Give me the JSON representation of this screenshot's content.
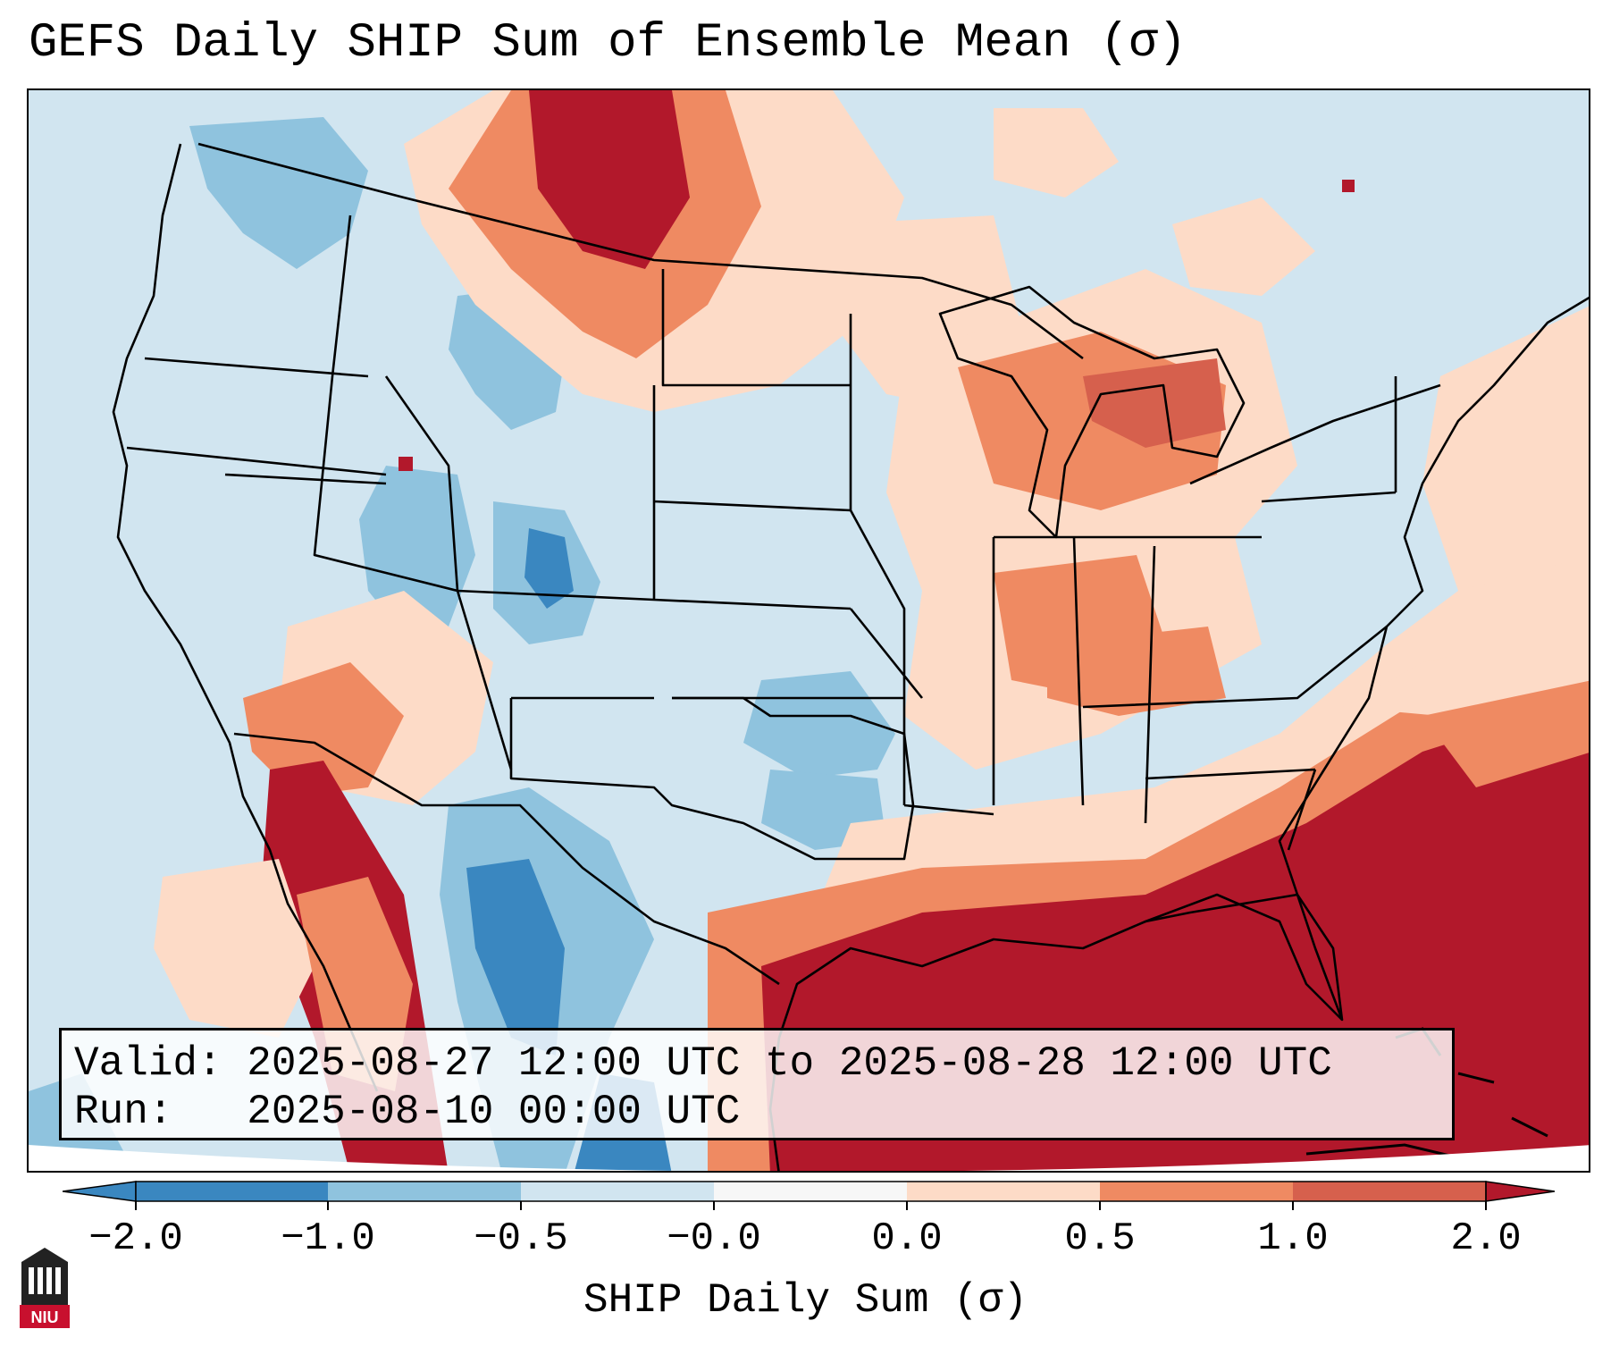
{
  "title": "GEFS Daily SHIP Sum of Ensemble Mean (σ)",
  "info": {
    "valid_label": "Valid:",
    "valid_value": "2025-08-27 12:00 UTC to 2025-08-28 12:00 UTC",
    "run_label": "Run:",
    "run_value": "2025-08-10 00:00 UTC"
  },
  "colorbar": {
    "label": "SHIP Daily Sum (σ)",
    "ticks": [
      "−2.0",
      "−1.0",
      "−0.5",
      "−0.0",
      "0.0",
      "0.5",
      "1.0",
      "2.0"
    ],
    "colors": [
      "#3a87c0",
      "#8fc3de",
      "#d1e5f0",
      "#f7f7f7",
      "#fddbc7",
      "#ef8a62",
      "#d6604d",
      "#b2182b"
    ]
  },
  "logo": {
    "text": "NIU",
    "color": "#c8102e"
  },
  "map_legend_bins": [
    {
      "label": "−2.0 to −1.0",
      "color": "#3a87c0"
    },
    {
      "label": "−1.0 to −0.5",
      "color": "#8fc3de"
    },
    {
      "label": "−0.5 to −0.0",
      "color": "#d1e5f0"
    },
    {
      "label": "0.0 to 0.5",
      "color": "#fddbc7"
    },
    {
      "label": "0.5 to 1.0",
      "color": "#ef8a62"
    },
    {
      "label": "1.0 to 2.0",
      "color": "#b2182b"
    }
  ]
}
